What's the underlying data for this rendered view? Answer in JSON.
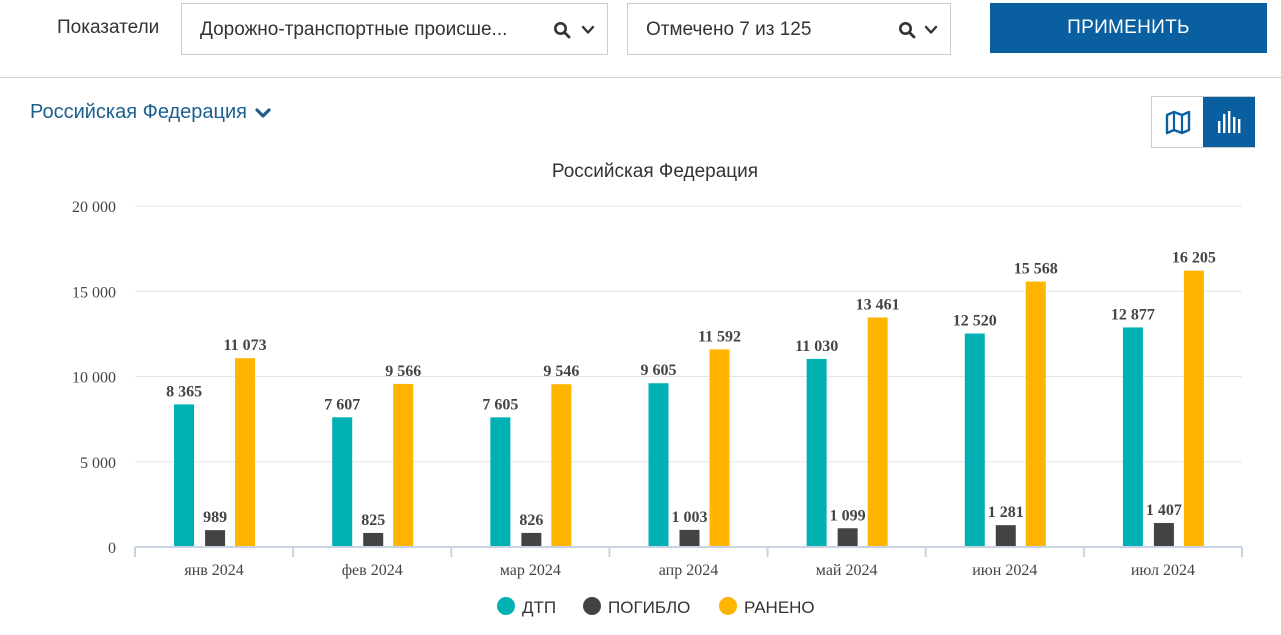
{
  "toolbar": {
    "indicators_label": "Показатели",
    "indicator_select": "Дорожно-транспортные происше...",
    "marked_select": "Отмечено 7 из 125",
    "apply_label": "ПРИМЕНИТЬ"
  },
  "region_selector": {
    "label": "Российская Федерация"
  },
  "view_toggle": {
    "map_icon": "map-icon",
    "chart_icon": "bar-chart-icon",
    "active": "chart"
  },
  "colors": {
    "accent": "#0a5fa1",
    "dtp": "#00b1b3",
    "killed": "#434343",
    "injured": "#ffb400"
  },
  "chart_data": {
    "type": "bar",
    "title": "Российская Федерация",
    "categories": [
      "янв 2024",
      "фев 2024",
      "мар 2024",
      "апр 2024",
      "май 2024",
      "июн 2024",
      "июл 2024"
    ],
    "series": [
      {
        "name": "ДТП",
        "color": "#00b1b3",
        "values": [
          8365,
          7607,
          7605,
          9605,
          11030,
          12520,
          12877
        ]
      },
      {
        "name": "ПОГИБЛО",
        "color": "#434343",
        "values": [
          989,
          825,
          826,
          1003,
          1099,
          1281,
          1407
        ]
      },
      {
        "name": "РАНЕНО",
        "color": "#ffb400",
        "values": [
          11073,
          9566,
          9546,
          11592,
          13461,
          15568,
          16205
        ]
      }
    ],
    "value_labels": [
      [
        "8 365",
        "7 607",
        "7 605",
        "9 605",
        "11 030",
        "12 520",
        "12 877"
      ],
      [
        "989",
        "825",
        "826",
        "1 003",
        "1 099",
        "1 281",
        "1 407"
      ],
      [
        "11 073",
        "9 566",
        "9 546",
        "11 592",
        "13 461",
        "15 568",
        "16 205"
      ]
    ],
    "yticks": [
      0,
      5000,
      10000,
      15000,
      20000
    ],
    "ytick_labels": [
      "0",
      "5 000",
      "10 000",
      "15 000",
      "20 000"
    ],
    "ylim": [
      0,
      20000
    ],
    "grid": true,
    "legend_position": "bottom"
  }
}
